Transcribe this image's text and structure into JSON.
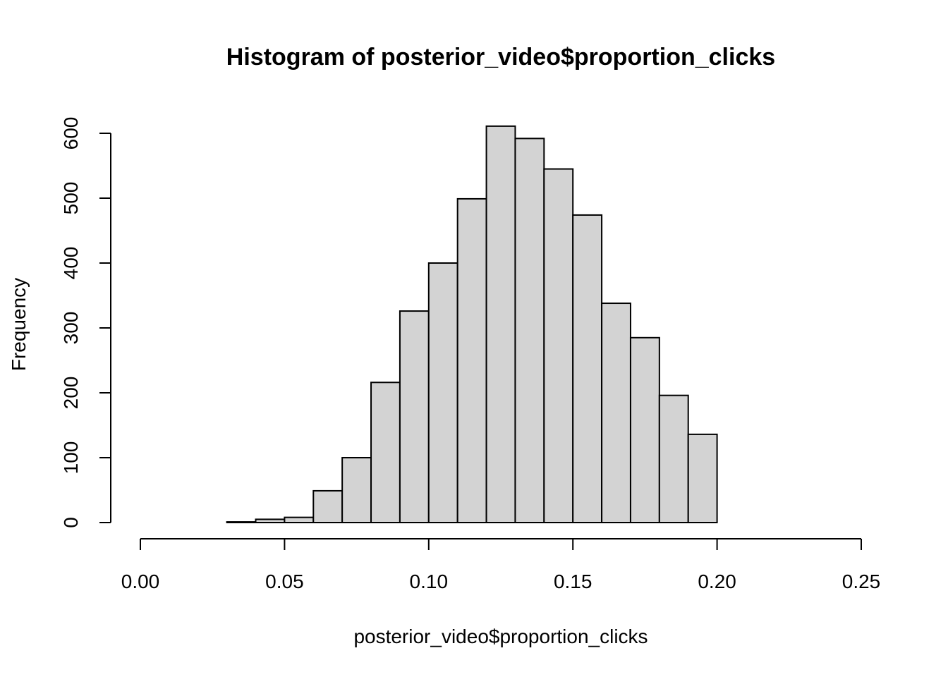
{
  "chart_data": {
    "type": "bar",
    "title": "Histogram of posterior_video$proportion_clicks",
    "xlabel": "posterior_video$proportion_clicks",
    "ylabel": "Frequency",
    "bin_edges": [
      0.03,
      0.04,
      0.05,
      0.06,
      0.07,
      0.08,
      0.09,
      0.1,
      0.11,
      0.12,
      0.13,
      0.14,
      0.15,
      0.16,
      0.17,
      0.18,
      0.19,
      0.2
    ],
    "values": [
      1,
      5,
      8,
      49,
      100,
      216,
      326,
      400,
      499,
      611,
      592,
      545,
      474,
      338,
      285,
      196,
      136
    ],
    "xlim": [
      0.0,
      0.25
    ],
    "ylim": [
      0,
      600
    ],
    "x_ticks": [
      "0.00",
      "0.05",
      "0.10",
      "0.15",
      "0.20",
      "0.25"
    ],
    "y_ticks": [
      "0",
      "100",
      "200",
      "300",
      "400",
      "500",
      "600"
    ],
    "grid": false,
    "legend": "none"
  }
}
